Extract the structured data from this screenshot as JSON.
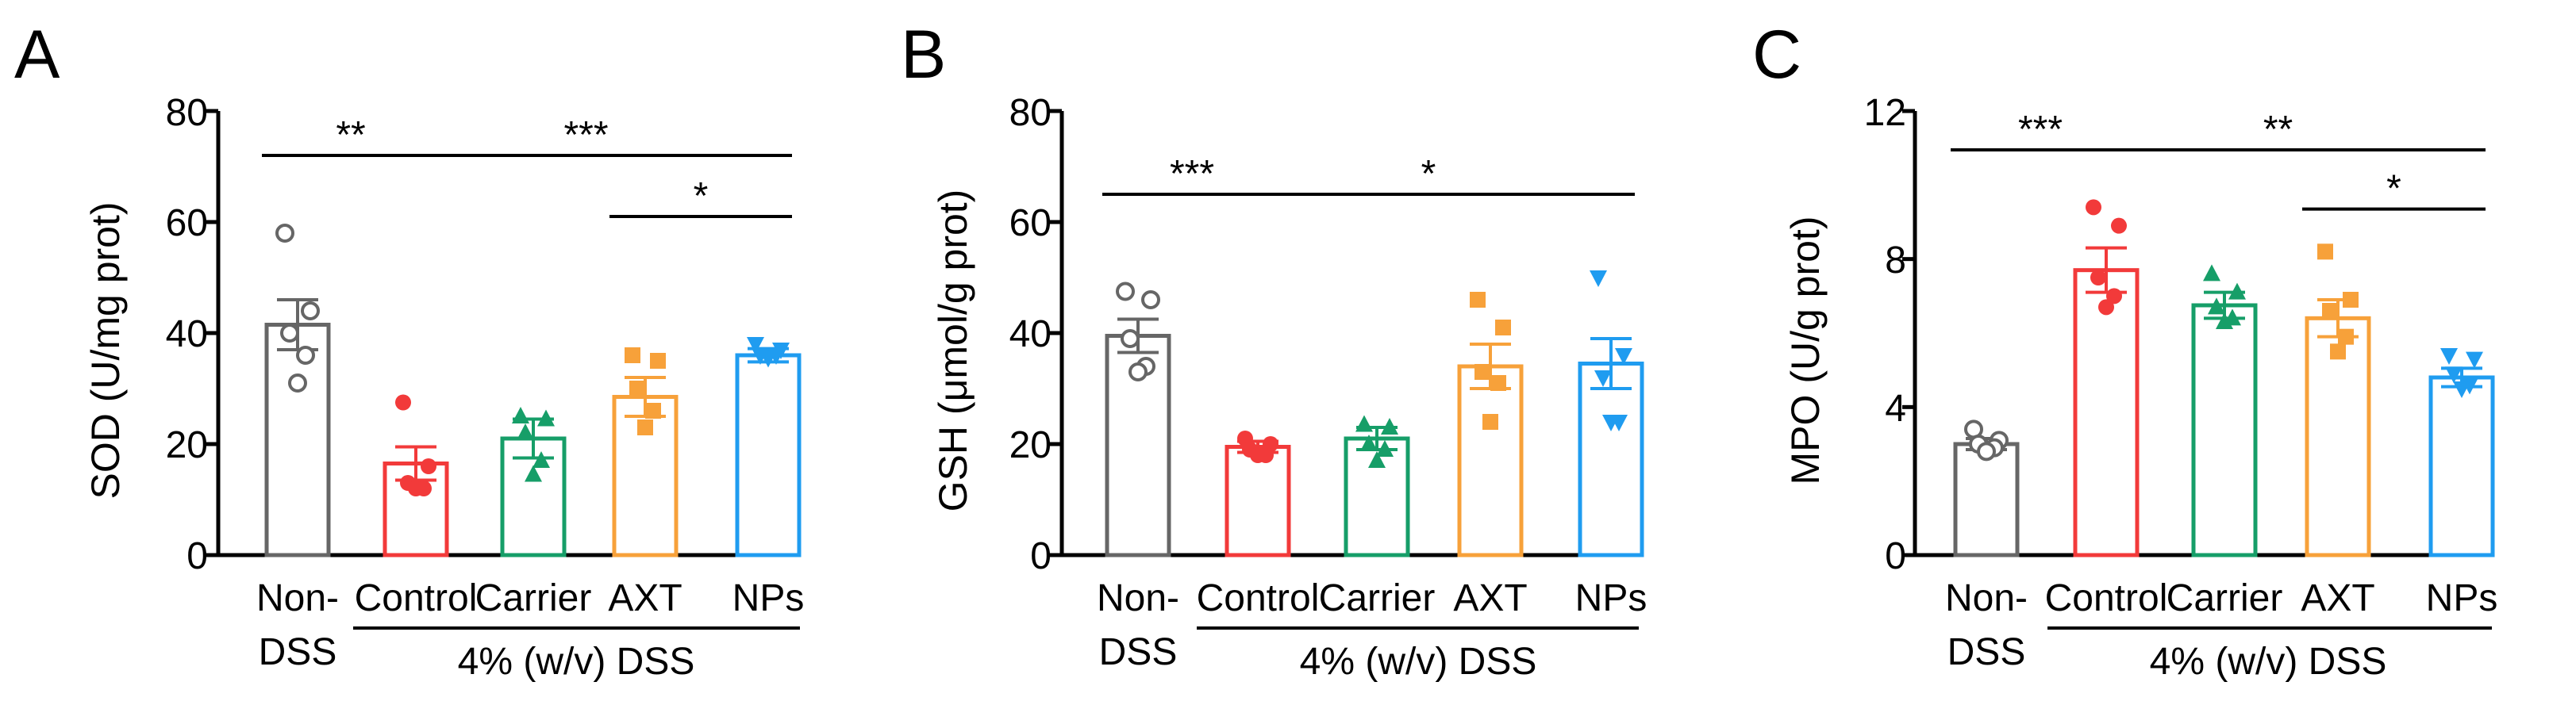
{
  "figure": {
    "group_label": "4% (w/v) DSS"
  },
  "chart_data": [
    {
      "panel": "A",
      "type": "bar",
      "ylabel": "SOD (U/mg prot)",
      "ylim": [
        0,
        80
      ],
      "yticks": [
        0,
        20,
        40,
        60,
        80
      ],
      "categories": [
        "Non-DSS",
        "Control",
        "Carrier",
        "AXT",
        "NPs"
      ],
      "category_lines": [
        [
          "Non-",
          "DSS"
        ],
        [
          "Control"
        ],
        [
          "Carrier"
        ],
        [
          "AXT"
        ],
        [
          "NPs"
        ]
      ],
      "colors": [
        "#666666",
        "#f23a3a",
        "#169e68",
        "#f7a13a",
        "#1f9cf0"
      ],
      "markers": [
        "circle-open",
        "circle",
        "triangle",
        "square",
        "triangle-down"
      ],
      "values": [
        41.5,
        16.5,
        21,
        28.5,
        36
      ],
      "errors": [
        4.5,
        3,
        3.5,
        3.5,
        1.2
      ],
      "points": [
        [
          58,
          44,
          40,
          36,
          31
        ],
        [
          27.5,
          16,
          13,
          12,
          12
        ],
        [
          25,
          24.5,
          22,
          17,
          14.5
        ],
        [
          36,
          35,
          30,
          26,
          23
        ],
        [
          38,
          37,
          36,
          36,
          35.5
        ]
      ],
      "significance": [
        {
          "from": 0,
          "to": 1,
          "label": "**",
          "level": 72
        },
        {
          "from": 1,
          "to": 4,
          "label": "***",
          "level": 72
        },
        {
          "from": 3,
          "to": 4,
          "label": "*",
          "level": 61
        }
      ]
    },
    {
      "panel": "B",
      "type": "bar",
      "ylabel": "GSH (μmol/g prot)",
      "ylim": [
        0,
        80
      ],
      "yticks": [
        0,
        20,
        40,
        60,
        80
      ],
      "categories": [
        "Non-DSS",
        "Control",
        "Carrier",
        "AXT",
        "NPs"
      ],
      "category_lines": [
        [
          "Non-",
          "DSS"
        ],
        [
          "Control"
        ],
        [
          "Carrier"
        ],
        [
          "AXT"
        ],
        [
          "NPs"
        ]
      ],
      "colors": [
        "#666666",
        "#f23a3a",
        "#169e68",
        "#f7a13a",
        "#1f9cf0"
      ],
      "markers": [
        "circle-open",
        "circle",
        "triangle",
        "square",
        "triangle-down"
      ],
      "values": [
        39.5,
        19.5,
        21,
        34,
        34.5
      ],
      "errors": [
        3,
        1,
        2,
        4,
        4.5
      ],
      "points": [
        [
          47.5,
          46,
          39,
          34,
          33
        ],
        [
          21,
          20,
          19,
          18,
          18
        ],
        [
          23.5,
          23,
          20,
          19,
          17
        ],
        [
          46,
          41,
          33,
          31,
          24
        ],
        [
          50,
          36,
          32,
          24,
          24
        ]
      ],
      "significance": [
        {
          "from": 0,
          "to": 1,
          "label": "***",
          "level": 65
        },
        {
          "from": 1,
          "to": 4,
          "label": "*",
          "level": 65
        }
      ]
    },
    {
      "panel": "C",
      "type": "bar",
      "ylabel": "MPO (U/g prot)",
      "ylim": [
        0,
        12
      ],
      "yticks": [
        0,
        4,
        8,
        12
      ],
      "categories": [
        "Non-DSS",
        "Control",
        "Carrier",
        "AXT",
        "NPs"
      ],
      "category_lines": [
        [
          "Non-",
          "DSS"
        ],
        [
          "Control"
        ],
        [
          "Carrier"
        ],
        [
          "AXT"
        ],
        [
          "NPs"
        ]
      ],
      "colors": [
        "#666666",
        "#f23a3a",
        "#169e68",
        "#f7a13a",
        "#1f9cf0"
      ],
      "markers": [
        "circle-open",
        "circle",
        "triangle",
        "square",
        "triangle-down"
      ],
      "values": [
        3,
        7.7,
        6.75,
        6.4,
        4.8
      ],
      "errors": [
        0.15,
        0.6,
        0.35,
        0.5,
        0.25
      ],
      "points": [
        [
          3.4,
          3.1,
          3.0,
          2.9,
          2.8
        ],
        [
          9.4,
          8.9,
          7.5,
          7.0,
          6.7
        ],
        [
          7.6,
          7.1,
          6.7,
          6.4,
          6.3
        ],
        [
          8.2,
          6.9,
          6.6,
          5.9,
          5.5
        ],
        [
          5.4,
          5.3,
          4.9,
          4.6,
          4.5
        ]
      ],
      "significance": [
        {
          "from": 0,
          "to": 1,
          "label": "***",
          "level": 10.95
        },
        {
          "from": 1,
          "to": 4,
          "label": "**",
          "level": 10.95
        },
        {
          "from": 3,
          "to": 4,
          "label": "*",
          "level": 9.35
        }
      ]
    }
  ]
}
